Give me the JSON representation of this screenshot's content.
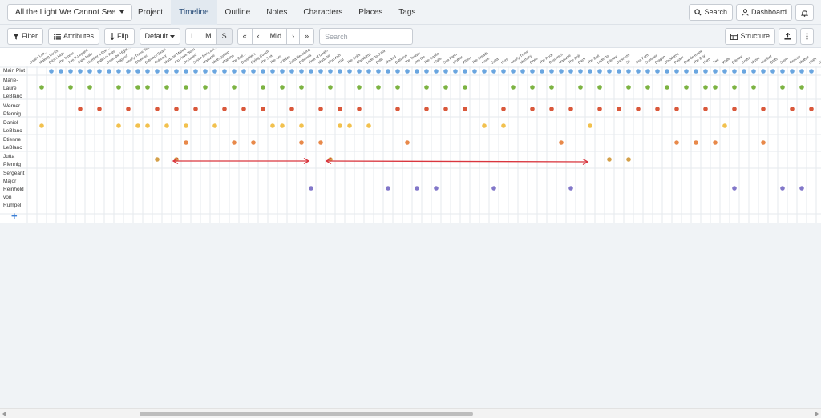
{
  "project": {
    "title": "All the Light We Cannot See"
  },
  "nav": {
    "tabs": [
      {
        "label": "Project",
        "active": false
      },
      {
        "label": "Timeline",
        "active": true
      },
      {
        "label": "Outline",
        "active": false
      },
      {
        "label": "Notes",
        "active": false
      },
      {
        "label": "Characters",
        "active": false
      },
      {
        "label": "Places",
        "active": false
      },
      {
        "label": "Tags",
        "active": false
      }
    ],
    "search_label": "Search",
    "dashboard_label": "Dashboard",
    "bell_icon": "bell-icon"
  },
  "toolbar": {
    "filter_label": "Filter",
    "attributes_label": "Attributes",
    "flip_label": "Flip",
    "default_label": "Default",
    "size_buttons": [
      "L",
      "M",
      "S"
    ],
    "size_selected": "S",
    "nav_buttons": [
      "«",
      "‹",
      "Mid",
      "›",
      "»"
    ],
    "search_placeholder": "Search",
    "structure_label": "Structure",
    "export_icon": "export-icon",
    "more_icon": "more-vertical-icon"
  },
  "timeline": {
    "rows": [
      {
        "label": "Main Plot",
        "color": "#6aa6e0",
        "cols": [
          3,
          4,
          5,
          6,
          7,
          8,
          9,
          10,
          11,
          12,
          13,
          14,
          15,
          16,
          17,
          18,
          19,
          20,
          21,
          22,
          23,
          24,
          25,
          26,
          27,
          28,
          29,
          30,
          31,
          32,
          33,
          34,
          35,
          36,
          37,
          38,
          39,
          40,
          41,
          42,
          43,
          44,
          45,
          46,
          47,
          48,
          49,
          50,
          51,
          52,
          53,
          54,
          55,
          56,
          57,
          58,
          59,
          60,
          61,
          62,
          63,
          64,
          65,
          66,
          67,
          68,
          69,
          70,
          71,
          72,
          73,
          74,
          75,
          76,
          77,
          78,
          79,
          80,
          81,
          82,
          83,
          84
        ]
      },
      {
        "label": "Marie-Laure LeBlanc",
        "color": "#7cb342",
        "cols": [
          2,
          5,
          7,
          10,
          12,
          13,
          15,
          17,
          19,
          22,
          25,
          27,
          29,
          32,
          35,
          37,
          39,
          42,
          44,
          46,
          51,
          53,
          55,
          58,
          60,
          63,
          65,
          67,
          69,
          71,
          72,
          74,
          76,
          79,
          81,
          83
        ]
      },
      {
        "label": "Werner Pfennig",
        "color": "#d9583b",
        "cols": [
          6,
          8,
          11,
          14,
          16,
          18,
          21,
          23,
          25,
          28,
          31,
          33,
          35,
          39,
          42,
          44,
          46,
          50,
          53,
          55,
          57,
          60,
          62,
          64,
          66,
          68,
          71,
          74,
          77,
          80,
          82
        ]
      },
      {
        "label": "Daniel LeBlanc",
        "color": "#f2c14e",
        "cols": [
          2,
          10,
          12,
          13,
          15,
          17,
          20,
          26,
          27,
          29,
          33,
          34,
          36,
          48,
          50,
          59,
          73
        ]
      },
      {
        "label": "Etienne LeBlanc",
        "color": "#e8894a",
        "cols": [
          17,
          22,
          24,
          29,
          31,
          40,
          56,
          68,
          70,
          72,
          77
        ]
      },
      {
        "label": "Jutta Pfennig",
        "color": "#d4a04a",
        "cols": [
          14,
          16,
          32,
          61,
          63
        ]
      },
      {
        "label": "Sergeant Major Reinhold von Rumpel",
        "color": "#8277c9",
        "cols": [
          30,
          38,
          41,
          43,
          49,
          57,
          74,
          79,
          81,
          83
        ]
      }
    ],
    "column_headers": [
      "Snail's Lon…",
      "Making Locks",
      "Clicks Hide",
      "The Tender",
      "Two P-Legged",
      "Saint-Malo",
      "Number 4 Rue…",
      "Pallet of Rats",
      "Down the Hight…",
      "Trapped",
      "Nearly Three Yea…",
      "Chateau",
      "Entrance Exam",
      "Rubbery",
      "Madame Manec",
      "You Have Been",
      "Occupied",
      "Seven feet Low…",
      "Madame",
      "Metropolitan",
      "Vitamins",
      "The Bolt…",
      "Daughters",
      "Flying Cooch",
      "The Sea",
      "The Key",
      "Voltaire",
      "Jutta Receiving",
      "Bohemia",
      "Time of Death",
      "Madame",
      "Mountain",
      "Trial",
      "The Bolts",
      "Blackbirds",
      "Letter to Jutta",
      "Bells",
      "Marked",
      "Battalion",
      "The Tender",
      "Into the",
      "The Castle",
      "Walls",
      "Sea Farm",
      "Mother",
      "Where",
      "The Breads",
      "Hope",
      "Jutta",
      "Hers",
      "Nearly Three",
      "Memory",
      "Ones",
      "The Rock",
      "Resurrect",
      "Madame",
      "The Bolt",
      "Bach",
      "The Bolt",
      "Letter to",
      "Etienne",
      "Darkness",
      "Sir",
      "Sea Farm",
      "Summer",
      "Dragon",
      "Blackbirds",
      "Pavlov",
      "Rue de Reine",
      "The Boy",
      "Hard",
      "Two",
      "Walls",
      "Etienne",
      "Grotto",
      "Music",
      "Number",
      "Cliffs",
      "Snow",
      "Rescue",
      "Mother",
      "Ninth",
      "Saint",
      "Bach"
    ],
    "arrows_color": "#d9363e"
  },
  "icons": {
    "filter": "filter-icon",
    "attributes": "list-icon",
    "flip": "flip-icon",
    "search": "search-icon",
    "dashboard": "dashboard-icon",
    "structure": "structure-icon",
    "add": "plus-icon"
  }
}
